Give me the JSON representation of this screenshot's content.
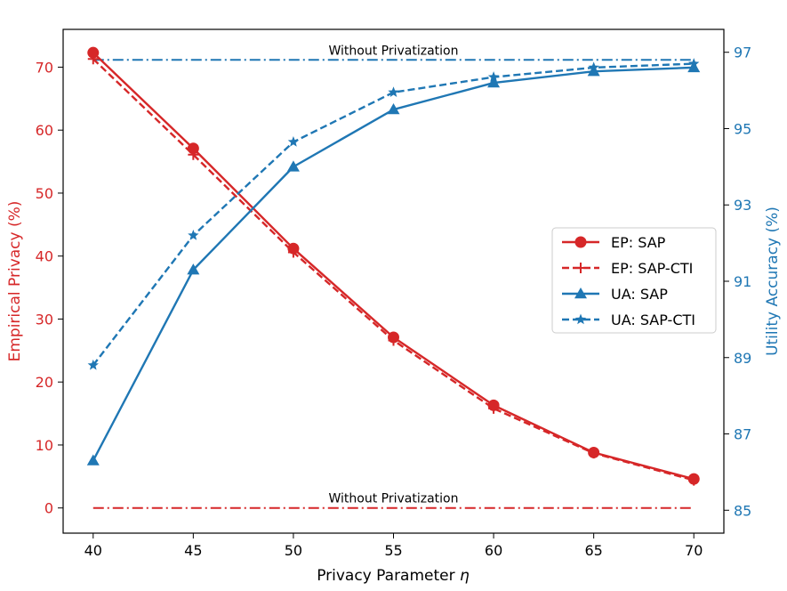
{
  "chart_data": {
    "type": "line",
    "xlabel": "Privacy Parameter",
    "xlabel_symbol": "η",
    "ylabel_left": "Empirical Privacy (%)",
    "ylabel_right": "Utility Accuracy (%)",
    "x": [
      40,
      45,
      50,
      55,
      60,
      65,
      70
    ],
    "xlim": [
      38.5,
      71.5
    ],
    "ylim_left": [
      -4,
      76
    ],
    "ylim_right": [
      84.4,
      97.6
    ],
    "xticks": [
      40,
      45,
      50,
      55,
      60,
      65,
      70
    ],
    "yticks_left": [
      0,
      10,
      20,
      30,
      40,
      50,
      60,
      70
    ],
    "yticks_right": [
      85,
      87,
      89,
      91,
      93,
      95,
      97
    ],
    "colors": {
      "ep": "#d62728",
      "ua": "#1f77b4"
    },
    "series": [
      {
        "name": "EP: SAP",
        "axis": "left",
        "color": "#d62728",
        "dash": "solid",
        "marker": "circle",
        "values": [
          72.3,
          57.1,
          41.2,
          27.1,
          16.3,
          8.8,
          4.6
        ]
      },
      {
        "name": "EP: SAP-CTI",
        "axis": "left",
        "color": "#d62728",
        "dash": "dashed",
        "marker": "plus",
        "values": [
          71.3,
          56.1,
          40.6,
          26.6,
          15.8,
          8.7,
          4.4
        ]
      },
      {
        "name": "UA: SAP",
        "axis": "right",
        "color": "#1f77b4",
        "dash": "solid",
        "marker": "triangle",
        "values": [
          86.3,
          91.3,
          94.0,
          95.5,
          96.2,
          96.5,
          96.6
        ]
      },
      {
        "name": "UA: SAP-CTI",
        "axis": "right",
        "color": "#1f77b4",
        "dash": "dashed",
        "marker": "star",
        "values": [
          88.8,
          92.2,
          94.65,
          95.95,
          96.35,
          96.6,
          96.7
        ]
      }
    ],
    "reference_lines": [
      {
        "axis": "right",
        "value": 96.8,
        "color": "#1f77b4",
        "label": "Without Privatization"
      },
      {
        "axis": "left",
        "value": 0,
        "color": "#d62728",
        "label": "Without Privatization"
      }
    ],
    "legend_position": "center-right"
  }
}
